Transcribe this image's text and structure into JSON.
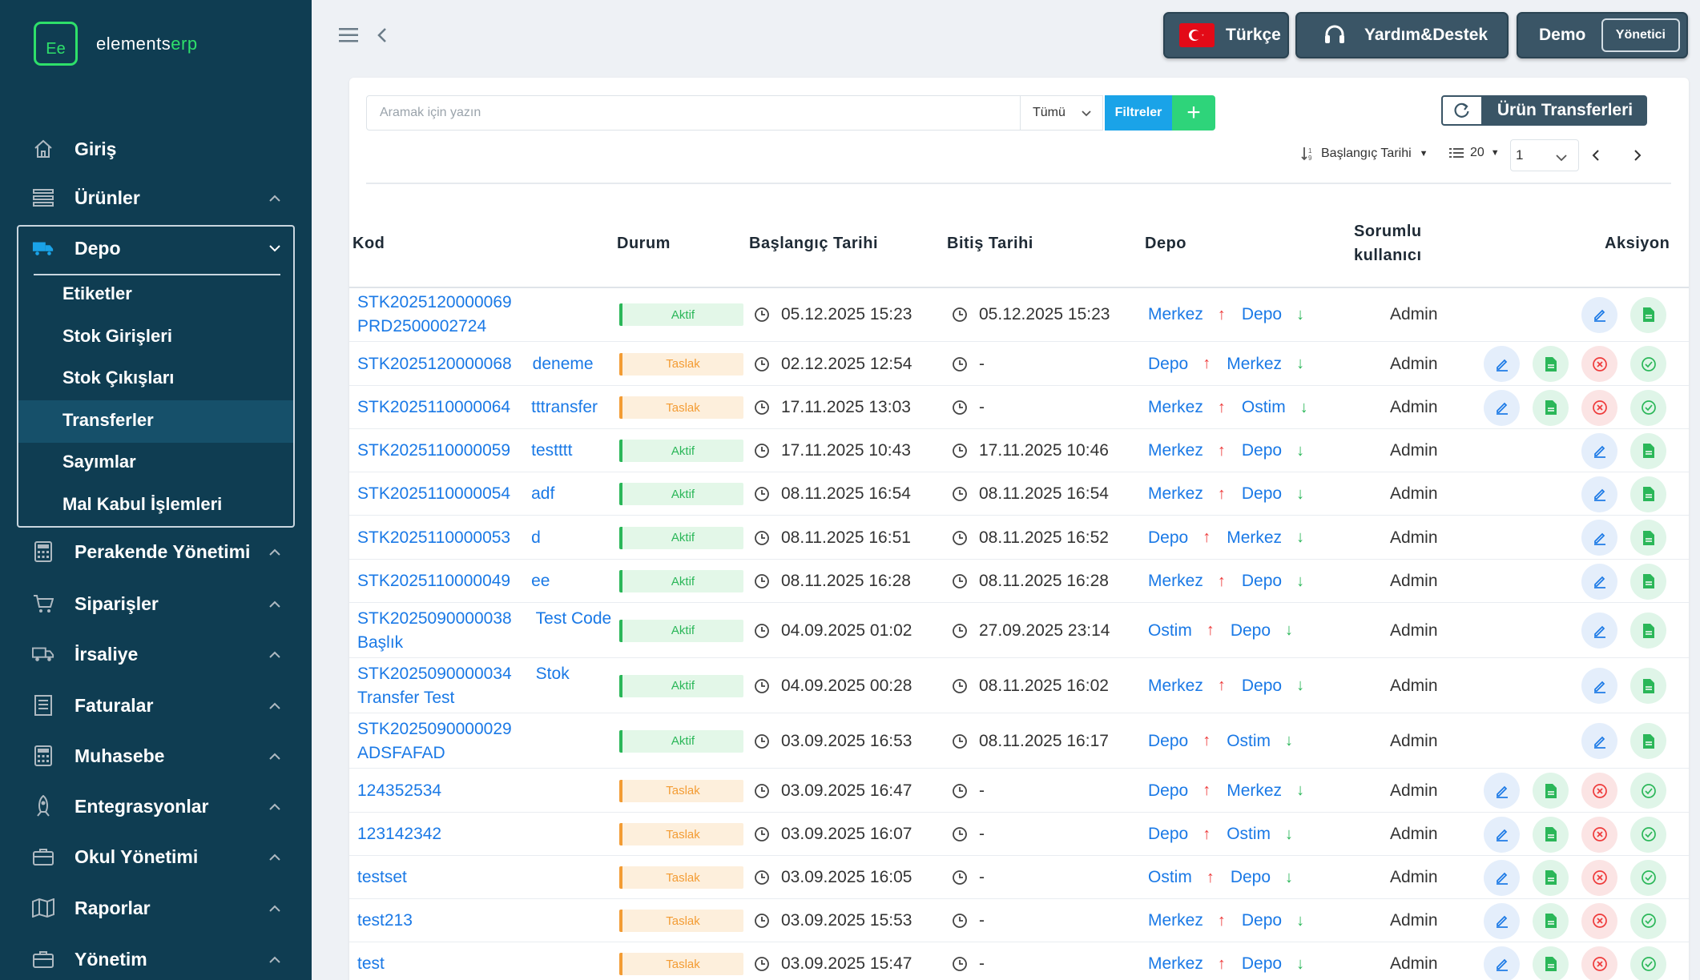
{
  "app": {
    "logo_mark": "Ee",
    "brand_prefix": "elements",
    "brand_suffix": "erp"
  },
  "topbar": {
    "language_label": "Türkçe",
    "help_label": "Yardım&Destek",
    "user_label": "Demo",
    "role_label": "Yönetici"
  },
  "sidebar": {
    "items": [
      {
        "label": "Giriş",
        "icon": "home-icon"
      },
      {
        "label": "Ürünler",
        "icon": "list-icon"
      },
      {
        "label": "Depo",
        "icon": "truck-icon"
      },
      {
        "label": "Perakende Yönetimi",
        "icon": "calculator-icon"
      },
      {
        "label": "Siparişler",
        "icon": "cart-icon"
      },
      {
        "label": "İrsaliye",
        "icon": "truck-icon"
      },
      {
        "label": "Faturalar",
        "icon": "invoice-icon"
      },
      {
        "label": "Muhasebe",
        "icon": "calculator-icon"
      },
      {
        "label": "Entegrasyonlar",
        "icon": "rocket-icon"
      },
      {
        "label": "Okul Yönetimi",
        "icon": "briefcase-icon"
      },
      {
        "label": "Raporlar",
        "icon": "map-icon"
      },
      {
        "label": "Yönetim",
        "icon": "briefcase-icon"
      }
    ],
    "depo_sub": [
      {
        "label": "Etiketler"
      },
      {
        "label": "Stok Girişleri"
      },
      {
        "label": "Stok Çıkışları"
      },
      {
        "label": "Transferler",
        "active": true
      },
      {
        "label": "Sayımlar"
      },
      {
        "label": "Mal Kabul İşlemleri"
      }
    ]
  },
  "toolbar": {
    "search_placeholder": "Aramak için yazın",
    "filter_select": "Tümü",
    "filter_button": "Filtreler",
    "add_button": "+",
    "page_title": "Ürün Transferleri",
    "sort_label": "Başlangıç Tarihi",
    "per_page": "20",
    "page": "1"
  },
  "table": {
    "headers": {
      "kod": "Kod",
      "durum": "Durum",
      "baslangic": "Başlangıç Tarihi",
      "bitis": "Bitiş Tarihi",
      "depo": "Depo",
      "sorumlu_1": "Sorumlu",
      "sorumlu_2": "kullanıcı",
      "aksiyon": "Aksiyon"
    },
    "rows": [
      {
        "code": "STK2025120000069",
        "name": "PRD2500002724",
        "layout": "stack",
        "status": "Aktif",
        "start": "05.12.2025 15:23",
        "end": "05.12.2025 15:23",
        "from": "Merkez",
        "to": "Depo",
        "user": "Admin",
        "actions": "edit-doc"
      },
      {
        "code": "STK2025120000068",
        "name": "deneme",
        "layout": "inline",
        "status": "Taslak",
        "start": "02.12.2025 12:54",
        "end": "-",
        "from": "Depo",
        "to": "Merkez",
        "user": "Admin",
        "actions": "full"
      },
      {
        "code": "STK2025110000064",
        "name": "tttransfer",
        "layout": "inline",
        "status": "Taslak",
        "start": "17.11.2025 13:03",
        "end": "-",
        "from": "Merkez",
        "to": "Ostim",
        "user": "Admin",
        "actions": "full"
      },
      {
        "code": "STK2025110000059",
        "name": "testttt",
        "layout": "inline",
        "status": "Aktif",
        "start": "17.11.2025 10:43",
        "end": "17.11.2025 10:46",
        "from": "Merkez",
        "to": "Depo",
        "user": "Admin",
        "actions": "edit-doc"
      },
      {
        "code": "STK2025110000054",
        "name": "adf",
        "layout": "inline",
        "status": "Aktif",
        "start": "08.11.2025 16:54",
        "end": "08.11.2025 16:54",
        "from": "Merkez",
        "to": "Depo",
        "user": "Admin",
        "actions": "edit-doc"
      },
      {
        "code": "STK2025110000053",
        "name": "d",
        "layout": "inline",
        "status": "Aktif",
        "start": "08.11.2025 16:51",
        "end": "08.11.2025 16:52",
        "from": "Depo",
        "to": "Merkez",
        "user": "Admin",
        "actions": "edit-doc"
      },
      {
        "code": "STK2025110000049",
        "name": "ee",
        "layout": "inline",
        "status": "Aktif",
        "start": "08.11.2025 16:28",
        "end": "08.11.2025 16:28",
        "from": "Merkez",
        "to": "Depo",
        "user": "Admin",
        "actions": "edit-doc"
      },
      {
        "code": "STK2025090000038",
        "name": "Test Code",
        "name2": "Başlık",
        "layout": "wrap",
        "status": "Aktif",
        "start": "04.09.2025 01:02",
        "end": "27.09.2025 23:14",
        "from": "Ostim",
        "to": "Depo",
        "user": "Admin",
        "actions": "edit-doc"
      },
      {
        "code": "STK2025090000034",
        "name": "Stok",
        "name2": "Transfer Test",
        "layout": "wrap",
        "status": "Aktif",
        "start": "04.09.2025 00:28",
        "end": "08.11.2025 16:02",
        "from": "Merkez",
        "to": "Depo",
        "user": "Admin",
        "actions": "edit-doc"
      },
      {
        "code": "STK2025090000029",
        "name": "ADSFAFAD",
        "layout": "stack",
        "status": "Aktif",
        "start": "03.09.2025 16:53",
        "end": "08.11.2025 16:17",
        "from": "Depo",
        "to": "Ostim",
        "user": "Admin",
        "actions": "edit-doc"
      },
      {
        "code": "124352534",
        "name": "",
        "layout": "inline",
        "status": "Taslak",
        "start": "03.09.2025 16:47",
        "end": "-",
        "from": "Depo",
        "to": "Merkez",
        "user": "Admin",
        "actions": "full"
      },
      {
        "code": "123142342",
        "name": "",
        "layout": "inline",
        "status": "Taslak",
        "start": "03.09.2025 16:07",
        "end": "-",
        "from": "Depo",
        "to": "Ostim",
        "user": "Admin",
        "actions": "full"
      },
      {
        "code": "testset",
        "name": "",
        "layout": "inline",
        "status": "Taslak",
        "start": "03.09.2025 16:05",
        "end": "-",
        "from": "Ostim",
        "to": "Depo",
        "user": "Admin",
        "actions": "full"
      },
      {
        "code": "test213",
        "name": "",
        "layout": "inline",
        "status": "Taslak",
        "start": "03.09.2025 15:53",
        "end": "-",
        "from": "Merkez",
        "to": "Depo",
        "user": "Admin",
        "actions": "full"
      },
      {
        "code": "test",
        "name": "",
        "layout": "inline",
        "status": "Taslak",
        "start": "03.09.2025 15:47",
        "end": "-",
        "from": "Merkez",
        "to": "Depo",
        "user": "Admin",
        "actions": "full"
      }
    ]
  },
  "colors": {
    "sidebar_bg": "#0f3d52",
    "brand_green": "#2ee06a",
    "link_blue": "#1a79e6",
    "status_active": "#2bb759",
    "status_draft": "#f39c34",
    "filter_blue": "#1aa3e8",
    "add_green": "#2ed47a"
  }
}
